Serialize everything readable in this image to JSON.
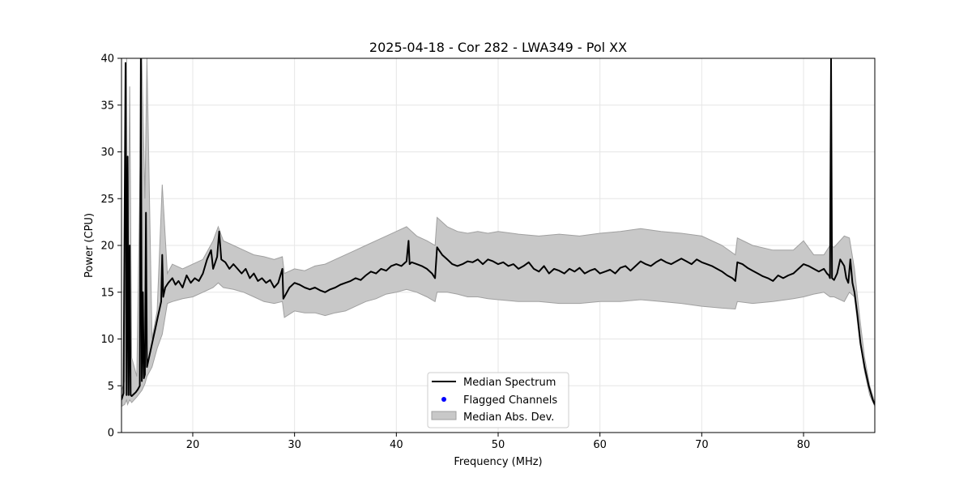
{
  "chart_data": {
    "type": "line",
    "title": "2025-04-18 - Cor 282 - LWA349 - Pol XX",
    "xlabel": "Frequency (MHz)",
    "ylabel": "Power (CPU)",
    "xlim": [
      13,
      87
    ],
    "ylim": [
      0,
      40
    ],
    "xticks": [
      20,
      30,
      40,
      50,
      60,
      70,
      80
    ],
    "yticks": [
      0,
      5,
      10,
      15,
      20,
      25,
      30,
      35,
      40
    ],
    "grid": true,
    "legend_position": "lower-center",
    "colors": {
      "median": "#000000",
      "flagged": "#0000ff",
      "mad_fill": "#c8c8c8",
      "mad_edge": "#a0a0a0",
      "grid": "#e6e6e6"
    },
    "series": [
      {
        "name": "Median Spectrum",
        "kind": "line",
        "x": [
          13.0,
          13.2,
          13.4,
          13.5,
          13.6,
          13.7,
          13.8,
          13.9,
          14.0,
          14.2,
          14.4,
          14.6,
          14.8,
          14.9,
          15.0,
          15.1,
          15.2,
          15.3,
          15.4,
          15.5,
          15.6,
          15.8,
          16.0,
          16.3,
          16.6,
          16.9,
          17.0,
          17.1,
          17.3,
          17.6,
          18.0,
          18.3,
          18.6,
          19.0,
          19.4,
          19.8,
          20.2,
          20.6,
          21.0,
          21.4,
          21.8,
          22.0,
          22.4,
          22.6,
          22.8,
          23.2,
          23.6,
          24.0,
          24.4,
          24.8,
          25.2,
          25.6,
          26.0,
          26.4,
          26.8,
          27.2,
          27.6,
          28.0,
          28.4,
          28.8,
          28.9,
          29.5,
          30.0,
          30.5,
          31.0,
          31.5,
          32.0,
          32.5,
          33.0,
          33.5,
          34.0,
          34.5,
          35.0,
          35.5,
          36.0,
          36.5,
          37.0,
          37.5,
          38.0,
          38.5,
          39.0,
          39.5,
          40.0,
          40.5,
          41.0,
          41.2,
          41.3,
          41.5,
          42.0,
          42.5,
          43.0,
          43.5,
          43.8,
          44.0,
          44.5,
          45.0,
          45.5,
          46.0,
          46.5,
          47.0,
          47.5,
          48.0,
          48.5,
          49.0,
          49.5,
          50.0,
          50.5,
          51.0,
          51.5,
          52.0,
          52.5,
          53.0,
          53.5,
          54.0,
          54.5,
          55.0,
          55.5,
          56.0,
          56.5,
          57.0,
          57.5,
          58.0,
          58.5,
          59.0,
          59.5,
          60.0,
          60.5,
          61.0,
          61.5,
          62.0,
          62.5,
          63.0,
          63.5,
          64.0,
          64.5,
          65.0,
          65.5,
          66.0,
          66.5,
          67.0,
          67.5,
          68.0,
          68.5,
          69.0,
          69.5,
          70.0,
          70.5,
          71.0,
          71.5,
          72.0,
          72.5,
          73.0,
          73.3,
          73.5,
          74.0,
          74.5,
          75.0,
          75.5,
          76.0,
          76.5,
          77.0,
          77.5,
          78.0,
          78.5,
          79.0,
          79.5,
          80.0,
          80.5,
          81.0,
          81.5,
          82.0,
          82.3,
          82.5,
          82.6,
          82.7,
          82.8,
          83.0,
          83.3,
          83.6,
          84.0,
          84.2,
          84.4,
          84.6,
          84.8,
          85.0,
          85.3,
          85.6,
          86.0,
          86.4,
          86.8,
          87.0
        ],
        "y": [
          3.5,
          4.2,
          39.5,
          4.0,
          29.5,
          4.0,
          20.0,
          4.0,
          3.9,
          4.1,
          4.3,
          4.6,
          5.0,
          40.0,
          5.5,
          15.0,
          5.8,
          6.2,
          23.5,
          7.0,
          7.5,
          8.5,
          9.5,
          11.0,
          12.5,
          14.0,
          19.0,
          14.5,
          15.5,
          16.0,
          16.5,
          15.8,
          16.2,
          15.5,
          16.8,
          16.0,
          16.5,
          16.2,
          17.0,
          18.5,
          19.5,
          17.5,
          18.8,
          21.5,
          18.5,
          18.2,
          17.5,
          18.0,
          17.5,
          17.0,
          17.5,
          16.5,
          17.0,
          16.2,
          16.5,
          16.0,
          16.3,
          15.5,
          16.0,
          17.5,
          14.3,
          15.5,
          16.0,
          15.8,
          15.5,
          15.3,
          15.5,
          15.2,
          15.0,
          15.3,
          15.5,
          15.8,
          16.0,
          16.2,
          16.5,
          16.3,
          16.8,
          17.2,
          17.0,
          17.5,
          17.3,
          17.8,
          18.0,
          17.8,
          18.3,
          20.5,
          18.0,
          18.2,
          18.0,
          17.8,
          17.5,
          17.0,
          16.5,
          19.8,
          19.0,
          18.5,
          18.0,
          17.8,
          18.0,
          18.3,
          18.2,
          18.5,
          18.0,
          18.5,
          18.3,
          18.0,
          18.2,
          17.8,
          18.0,
          17.5,
          17.8,
          18.2,
          17.5,
          17.2,
          17.8,
          17.0,
          17.5,
          17.3,
          17.0,
          17.5,
          17.2,
          17.6,
          17.0,
          17.3,
          17.5,
          17.0,
          17.2,
          17.4,
          17.0,
          17.6,
          17.8,
          17.3,
          17.8,
          18.3,
          18.0,
          17.8,
          18.2,
          18.5,
          18.2,
          18.0,
          18.3,
          18.6,
          18.3,
          18.0,
          18.5,
          18.2,
          18.0,
          17.8,
          17.5,
          17.2,
          16.8,
          16.5,
          16.2,
          18.2,
          18.0,
          17.6,
          17.3,
          17.0,
          16.7,
          16.5,
          16.2,
          16.8,
          16.5,
          16.8,
          17.0,
          17.5,
          18.0,
          17.8,
          17.5,
          17.2,
          17.5,
          17.0,
          16.8,
          16.5,
          40.0,
          16.5,
          16.3,
          17.0,
          18.5,
          17.8,
          16.5,
          16.0,
          18.5,
          16.0,
          15.0,
          12.5,
          9.5,
          7.0,
          5.0,
          3.5,
          3.0
        ]
      },
      {
        "name": "Flagged Channels",
        "kind": "points",
        "x": [],
        "y": []
      },
      {
        "name": "Median Abs. Dev.",
        "kind": "band",
        "x": [
          13.0,
          13.3,
          13.5,
          13.6,
          13.8,
          14.0,
          14.5,
          15.0,
          15.3,
          15.5,
          16.0,
          16.5,
          17.0,
          17.5,
          18.0,
          19.0,
          20.0,
          21.0,
          22.0,
          22.5,
          23.0,
          24.0,
          25.0,
          26.0,
          27.0,
          28.0,
          28.8,
          29.0,
          30.0,
          31.0,
          32.0,
          33.0,
          34.0,
          35.0,
          36.0,
          37.0,
          38.0,
          39.0,
          40.0,
          41.0,
          42.0,
          43.0,
          43.8,
          44.0,
          45.0,
          46.0,
          47.0,
          48.0,
          49.0,
          50.0,
          52.0,
          54.0,
          56.0,
          58.0,
          60.0,
          62.0,
          64.0,
          66.0,
          68.0,
          70.0,
          72.0,
          73.3,
          73.5,
          75.0,
          77.0,
          79.0,
          80.0,
          81.0,
          82.0,
          82.6,
          83.0,
          84.0,
          84.5,
          85.0,
          85.5,
          86.0,
          86.5,
          87.0
        ],
        "upper": [
          4.5,
          5.5,
          40.0,
          12.0,
          37.0,
          8.0,
          6.0,
          40.0,
          25.0,
          40.0,
          10.0,
          13.0,
          26.5,
          17.0,
          18.0,
          17.5,
          18.0,
          18.5,
          20.5,
          22.0,
          20.5,
          20.0,
          19.5,
          19.0,
          18.8,
          18.5,
          18.8,
          17.0,
          17.5,
          17.3,
          17.8,
          18.0,
          18.5,
          19.0,
          19.5,
          20.0,
          20.5,
          21.0,
          21.5,
          22.0,
          21.0,
          20.5,
          20.0,
          23.0,
          22.0,
          21.5,
          21.3,
          21.5,
          21.3,
          21.5,
          21.2,
          21.0,
          21.2,
          21.0,
          21.3,
          21.5,
          21.8,
          21.5,
          21.3,
          21.0,
          20.0,
          19.0,
          20.8,
          20.0,
          19.5,
          19.5,
          20.5,
          19.0,
          19.0,
          20.0,
          19.8,
          21.0,
          20.8,
          17.5,
          12.5,
          8.0,
          5.0,
          3.2
        ],
        "lower": [
          2.8,
          3.0,
          3.5,
          3.0,
          3.5,
          3.2,
          3.8,
          4.5,
          5.2,
          6.0,
          7.0,
          9.0,
          10.5,
          13.8,
          14.0,
          14.3,
          14.5,
          15.0,
          15.5,
          16.0,
          15.5,
          15.3,
          15.0,
          14.5,
          14.0,
          13.8,
          14.0,
          12.3,
          13.0,
          12.8,
          12.8,
          12.5,
          12.8,
          13.0,
          13.5,
          14.0,
          14.3,
          14.8,
          15.0,
          15.3,
          15.0,
          14.5,
          14.0,
          15.0,
          15.0,
          14.8,
          14.5,
          14.5,
          14.3,
          14.2,
          14.0,
          14.0,
          13.8,
          13.8,
          14.0,
          14.0,
          14.2,
          14.0,
          13.8,
          13.5,
          13.3,
          13.2,
          14.0,
          13.8,
          14.0,
          14.3,
          14.5,
          14.8,
          15.0,
          14.5,
          14.5,
          14.0,
          15.0,
          14.5,
          10.0,
          6.5,
          4.0,
          2.8
        ]
      }
    ]
  }
}
